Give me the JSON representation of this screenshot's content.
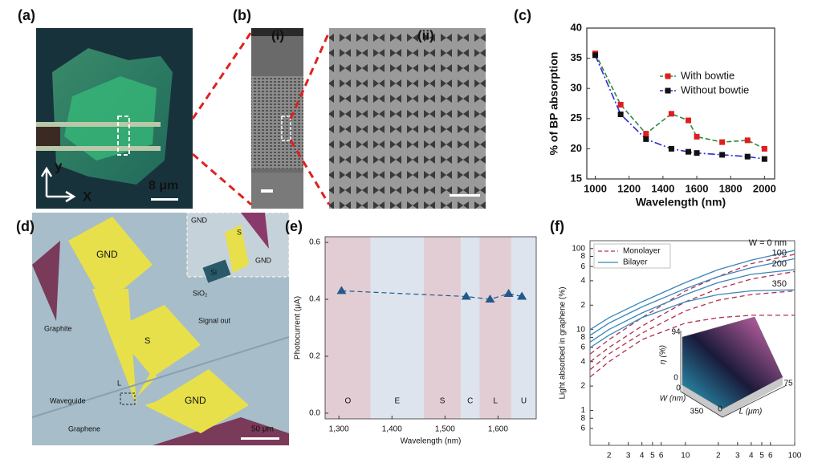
{
  "panels": {
    "a": "(a)",
    "b": "(b)",
    "c": "(c)",
    "d": "(d)",
    "e": "(e)",
    "f": "(f)"
  },
  "photo_a": {
    "y_axis": "y",
    "x_axis": "X",
    "scale": "8 μm"
  },
  "photo_b": {
    "left": "(i)",
    "right": "(ii)"
  },
  "photo_d": {
    "labels": [
      "GND",
      "S",
      "GND",
      "Signal out",
      "Graphite",
      "Waveguide",
      "Graphene",
      "L",
      "50 μm"
    ],
    "inset": [
      "GND",
      "S",
      "GND",
      "Si",
      "SiO₂"
    ]
  },
  "chart_data": [
    {
      "type": "line",
      "ylabel": "% of BP absorption",
      "xlabel": "Wavelength (nm)",
      "x": [
        1000,
        1150,
        1300,
        1450,
        1550,
        1600,
        1750,
        1900,
        2000
      ],
      "xlim": [
        950,
        2060
      ],
      "xticks": [
        1000,
        1200,
        1400,
        1600,
        1800,
        2000
      ],
      "ylim": [
        15,
        40
      ],
      "yticks": [
        15,
        20,
        25,
        30,
        35,
        40
      ],
      "series": [
        {
          "name": "With bowtie",
          "color": "#e01e1e",
          "line_color": "#2e8b3e",
          "values": [
            35.8,
            27.3,
            22.5,
            25.8,
            24.7,
            22.0,
            21.1,
            21.4,
            20.0
          ]
        },
        {
          "name": "Without bowtie",
          "color": "#111111",
          "line_color": "#2a2ad0",
          "values": [
            35.5,
            25.7,
            21.6,
            20.0,
            19.5,
            19.3,
            19.0,
            18.7,
            18.3
          ]
        }
      ]
    },
    {
      "type": "scatter",
      "ylabel": "Photocurrent (μA)",
      "xlabel": "Wavelength (nm)",
      "xlim": [
        1274,
        1672
      ],
      "xticks": [
        {
          "value": 1300,
          "label": "1,300"
        },
        {
          "value": 1400,
          "label": "1,400"
        },
        {
          "value": 1500,
          "label": "1,500"
        },
        {
          "value": 1600,
          "label": "1,600"
        }
      ],
      "ylim": [
        -0.02,
        0.62
      ],
      "yticks": [
        {
          "value": 0,
          "label": "0.0"
        },
        0.2,
        0.4,
        0.6
      ],
      "bands": [
        {
          "name": "O",
          "start": 1274,
          "end": 1360,
          "color": "#e3cdd4"
        },
        {
          "name": "E",
          "start": 1360,
          "end": 1460,
          "color": "#dde4ee"
        },
        {
          "name": "S",
          "start": 1460,
          "end": 1530,
          "color": "#e3cdd4"
        },
        {
          "name": "C",
          "start": 1530,
          "end": 1565,
          "color": "#dde4ee"
        },
        {
          "name": "L",
          "start": 1565,
          "end": 1625,
          "color": "#e3cdd4"
        },
        {
          "name": "U",
          "start": 1625,
          "end": 1672,
          "color": "#dde4ee"
        }
      ],
      "x": [
        1305,
        1540,
        1585,
        1620,
        1645
      ],
      "values": [
        0.43,
        0.41,
        0.4,
        0.42,
        0.41
      ],
      "color": "#1f5a8a"
    },
    {
      "type": "line",
      "ylabel": "Light absorbed in graphene (%)",
      "xlabel": "L (μm)",
      "xscale": "log",
      "yscale": "log",
      "x": [
        1.35,
        2,
        4,
        10,
        20,
        40,
        100
      ],
      "xlim": [
        1.34,
        100
      ],
      "xticks": [
        2,
        3,
        4,
        5,
        6,
        10,
        {
          "value": 20,
          "label": "2"
        },
        {
          "value": 30,
          "label": "3"
        },
        {
          "value": 40,
          "label": "4"
        },
        {
          "value": 50,
          "label": "5"
        },
        {
          "value": 60,
          "label": "6"
        },
        100
      ],
      "ylim": [
        0.37,
        125
      ],
      "yticks": [
        100,
        {
          "value": 80,
          "label": "8"
        },
        {
          "value": 60,
          "label": "6"
        },
        {
          "value": 40,
          "label": "4"
        },
        {
          "value": 20,
          "label": "2"
        },
        10,
        8,
        6,
        4,
        2,
        1,
        {
          "value": 0.8,
          "label": "8"
        },
        {
          "value": 0.6,
          "label": "6"
        }
      ],
      "series": [
        {
          "name": "Monolayer",
          "color": "#b03050",
          "dash": true,
          "curves": [
            {
              "values": [
                5,
                7.5,
                14,
                30,
                45,
                65,
                85
              ]
            },
            {
              "values": [
                4,
                6,
                11,
                22,
                32,
                42,
                52
              ]
            },
            {
              "values": [
                3.2,
                5,
                9,
                17,
                23,
                27,
                30
              ]
            },
            {
              "values": [
                2.6,
                4,
                7.5,
                12,
                14,
                15,
                15
              ]
            }
          ]
        },
        {
          "name": "Bilayer",
          "color": "#3a86b8",
          "dash": false,
          "curves": [
            {
              "label": "W = 0 nm",
              "values": [
                10,
                14,
                22,
                38,
                55,
                72,
                95
              ]
            },
            {
              "label": "100",
              "values": [
                8.5,
                12,
                19,
                32,
                45,
                58,
                75
              ]
            },
            {
              "label": "200",
              "values": [
                7,
                10,
                16,
                27,
                38,
                48,
                55
              ]
            },
            {
              "label": "350",
              "values": [
                6,
                8.5,
                14,
                22,
                27,
                30,
                31
              ]
            }
          ]
        }
      ],
      "inset": [
        "94",
        "η (%)",
        "0",
        "W (nm)",
        "0",
        "350",
        "0",
        "L (μm)",
        "75"
      ]
    }
  ]
}
